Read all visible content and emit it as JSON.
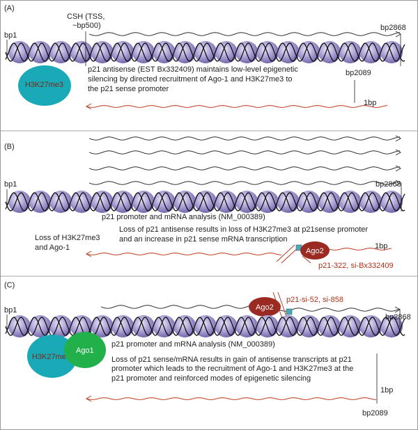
{
  "panel_a": {
    "label": "(A)",
    "bp_left": "bp1",
    "csh_line1": "CSH (TSS,",
    "csh_line2": "~bp500)",
    "bp_right": "bp2868",
    "h3k27": "H3K27me3",
    "desc": [
      "p21 antisense (EST Bx332409) maintains low-level epigenetic",
      "silencing by directed recruitment of Ago-1 and H3K27me3 to",
      "the p21 sense promoter"
    ],
    "bp2089": "bp2089",
    "bp1": "1bp"
  },
  "panel_b": {
    "label": "(B)",
    "bp_left": "bp1",
    "bp_right": "bp2868",
    "promoter": "p21 promoter and mRNA analysis (NM_000389)",
    "desc": [
      "Loss of p21 antisense results in loss of H3K27me3 at p21sense promoter",
      "and  an increase in p21 sense mRNA transcription"
    ],
    "loss": [
      "Loss of H3K27me3",
      "and Ago-1"
    ],
    "ago2": "Ago2",
    "bp1": "1bp",
    "sirna": "p21-322, si-Bx332409"
  },
  "panel_c": {
    "label": "(C)",
    "bp_left": "bp1",
    "bp_right": "bp2868",
    "ago2": "Ago2",
    "sirna": "p21-si-52, si-858",
    "h3k27": "H3K27me3",
    "ago1": "Ago1",
    "promoter": "p21 promoter and mRNA analysis (NM_000389)",
    "desc": [
      "Loss of p21 sense/mRNA results in gain of antisense transcripts at  p21",
      "promoter which leads to the recruitment of Ago-1 and H3K27me3 at the",
      "p21 promoter and reinforced modes of epigenetic silencing"
    ],
    "bp1": "1bp",
    "bp2089": "bp2089"
  },
  "colors": {
    "nucleosome": "#a79bd0",
    "h3k27me3": "#1aa9b7",
    "ago1": "#22b04a",
    "ago2": "#9b2a22",
    "antisense_rna": "#c0391f",
    "dna": "#222222"
  }
}
